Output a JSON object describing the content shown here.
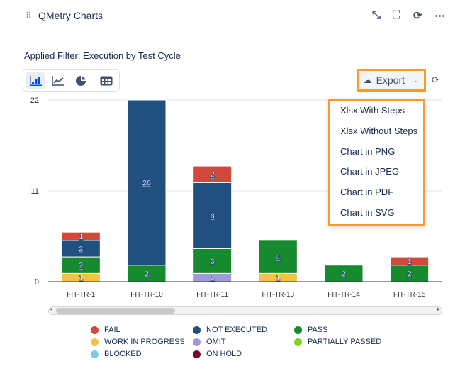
{
  "header": {
    "title": "QMetry Charts",
    "icons": [
      "drag-handle-icon",
      "minimize-icon",
      "fullscreen-icon",
      "refresh-icon",
      "more-icon"
    ]
  },
  "filter_label": "Applied Filter: Execution by Test Cycle",
  "toolbar": {
    "views": [
      "bar-chart-icon",
      "line-chart-icon",
      "pie-chart-icon",
      "table-icon"
    ],
    "active": "bar-chart-icon"
  },
  "export": {
    "label": "Export",
    "menu": [
      "Xlsx With Steps",
      "Xlsx Without Steps",
      "Chart in PNG",
      "Chart in JPEG",
      "Chart in PDF",
      "Chart in SVG"
    ]
  },
  "colors": {
    "FAIL": "#d0493a",
    "WORK IN PROGRESS": "#f5c343",
    "NOT EXECUTED": "#21507f",
    "OMIT": "#a19ad8",
    "PASS": "#168a2e",
    "PARTIALLY PASSED": "#7ed321",
    "BLOCKED": "#7ecbe0",
    "ON HOLD": "#7b0a2f"
  },
  "chart_data": {
    "type": "bar",
    "stacked": true,
    "categories": [
      "FIT-TR-1",
      "FIT-TR-10",
      "FIT-TR-11",
      "FIT-TR-13",
      "FIT-TR-14",
      "FIT-TR-15"
    ],
    "ylim": [
      0,
      22
    ],
    "yticks": [
      "0",
      "11",
      "22"
    ],
    "grid": true,
    "legend_position": "bottom",
    "series": [
      {
        "name": "WORK IN PROGRESS",
        "values": [
          1,
          0,
          0,
          1,
          0,
          0
        ]
      },
      {
        "name": "OMIT",
        "values": [
          0,
          0,
          1,
          0,
          0,
          0
        ]
      },
      {
        "name": "PASS",
        "values": [
          2,
          2,
          3,
          4,
          2,
          2
        ]
      },
      {
        "name": "NOT EXECUTED",
        "values": [
          2,
          20,
          8,
          0,
          0,
          0
        ]
      },
      {
        "name": "FAIL",
        "values": [
          1,
          0,
          2,
          0,
          0,
          1
        ]
      }
    ],
    "legend": [
      "FAIL",
      "NOT EXECUTED",
      "PASS",
      "WORK IN PROGRESS",
      "OMIT",
      "PARTIALLY PASSED",
      "BLOCKED",
      "ON HOLD"
    ]
  }
}
